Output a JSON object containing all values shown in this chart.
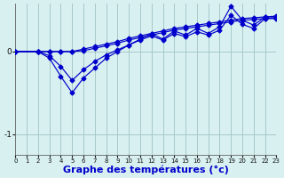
{
  "background_color": "#d8f0f0",
  "grid_color": "#a8c8c8",
  "line_color": "#0000cc",
  "xlabel": "Graphe des températures (°c)",
  "xlabel_fontsize": 8,
  "ylim": [
    -1.25,
    0.58
  ],
  "xlim": [
    0,
    23
  ],
  "yticks": [
    -1,
    0
  ],
  "xticks": [
    0,
    1,
    2,
    3,
    4,
    5,
    6,
    7,
    8,
    9,
    10,
    11,
    12,
    13,
    14,
    15,
    16,
    17,
    18,
    19,
    20,
    21,
    22,
    23
  ],
  "line1_x": [
    0,
    2,
    3,
    4,
    5,
    6,
    7,
    8,
    9,
    10,
    11,
    12,
    13,
    14,
    15,
    16,
    17,
    18,
    19,
    20,
    21,
    22,
    23
  ],
  "line1_y": [
    0.0,
    0.0,
    0.0,
    0.0,
    0.0,
    0.03,
    0.06,
    0.09,
    0.12,
    0.16,
    0.19,
    0.22,
    0.25,
    0.28,
    0.3,
    0.32,
    0.34,
    0.36,
    0.38,
    0.4,
    0.41,
    0.42,
    0.43
  ],
  "line2_x": [
    0,
    2,
    3,
    4,
    5,
    6,
    7,
    8,
    9,
    10,
    11,
    12,
    13,
    14,
    15,
    16,
    17,
    18,
    19,
    20,
    21,
    22,
    23
  ],
  "line2_y": [
    0.0,
    0.0,
    -0.08,
    -0.3,
    -0.5,
    -0.32,
    -0.2,
    -0.08,
    0.0,
    0.08,
    0.15,
    0.22,
    0.15,
    0.25,
    0.2,
    0.28,
    0.22,
    0.3,
    0.55,
    0.38,
    0.32,
    0.42,
    0.42
  ],
  "line3_x": [
    0,
    2,
    3,
    4,
    5,
    6,
    7,
    8,
    9,
    10,
    11,
    12,
    13,
    14,
    15,
    16,
    17,
    18,
    19,
    20,
    21,
    22,
    23
  ],
  "line3_y": [
    0.0,
    0.0,
    0.0,
    0.0,
    0.0,
    0.01,
    0.04,
    0.07,
    0.1,
    0.14,
    0.17,
    0.2,
    0.23,
    0.26,
    0.28,
    0.3,
    0.32,
    0.34,
    0.36,
    0.38,
    0.39,
    0.4,
    0.41
  ],
  "line4_x": [
    0,
    2,
    3,
    4,
    5,
    6,
    7,
    8,
    9,
    10,
    11,
    12,
    13,
    14,
    15,
    16,
    17,
    18,
    19,
    20,
    21,
    22,
    23
  ],
  "line4_y": [
    0.0,
    0.0,
    -0.05,
    -0.18,
    -0.35,
    -0.22,
    -0.12,
    -0.04,
    0.02,
    0.08,
    0.14,
    0.19,
    0.14,
    0.22,
    0.18,
    0.24,
    0.2,
    0.26,
    0.44,
    0.33,
    0.28,
    0.4,
    0.4
  ]
}
